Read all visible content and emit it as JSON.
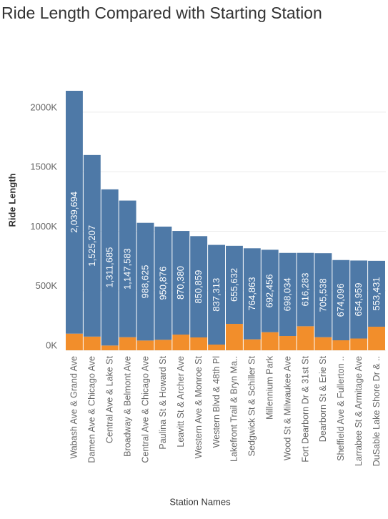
{
  "chart_data": {
    "type": "stacked_bar",
    "title": "Ride Length Compared with Starting Station",
    "x_label": "Station Names",
    "y_label": "Ride Length",
    "categories": [
      "Wabash Ave & Grand Ave",
      "Damen Ave & Chicago Ave",
      "Central Ave & Lake St",
      "Broadway & Belmont Ave",
      "Central Ave & Chicago Ave",
      "Paulina St & Howard St",
      "Leavitt St & Archer Ave",
      "Western Ave & Monroe St",
      "Western Blvd & 48th Pl",
      "Lakefront Trail & Bryn Ma..",
      "Sedgwick St & Schiller St",
      "Millennium Park",
      "Wood St & Milwaukee Ave",
      "Fort Dearborn Dr & 31st St",
      "Dearborn St & Erie St",
      "Sheffield Ave & Fullerton ..",
      "Larrabee St & Armitage Ave",
      "DuSable Lake Shore Dr & .."
    ],
    "series": [
      {
        "color": "#f28e2b",
        "values": [
          140000,
          115000,
          40000,
          110000,
          82000,
          88000,
          132000,
          108000,
          48000,
          222000,
          92000,
          152000,
          120000,
          202000,
          110000,
          84000,
          99000,
          198000
        ]
      },
      {
        "color": "#4e79a7",
        "values": [
          2039694,
          1525207,
          1311685,
          1147583,
          988625,
          950876,
          870380,
          850859,
          837313,
          655632,
          764863,
          692456,
          698034,
          616283,
          705538,
          674096,
          654959,
          553431
        ],
        "value_labels": [
          "2,039,694",
          "1,525,207",
          "1,311,685",
          "1,147,583",
          "988,625",
          "950,876",
          "870,380",
          "850,859",
          "837,313",
          "655,632",
          "764,863",
          "692,456",
          "698,034",
          "616,283",
          "705,538",
          "674,096",
          "654,959",
          "553,431"
        ]
      }
    ],
    "ylim": [
      0,
      2600000
    ],
    "yticks": [
      {
        "value": 0,
        "label": "0K"
      },
      {
        "value": 500000,
        "label": "500K"
      },
      {
        "value": 1000000,
        "label": "1000K"
      },
      {
        "value": 1500000,
        "label": "1500K"
      },
      {
        "value": 2000000,
        "label": "2000K"
      }
    ],
    "grid": true
  }
}
